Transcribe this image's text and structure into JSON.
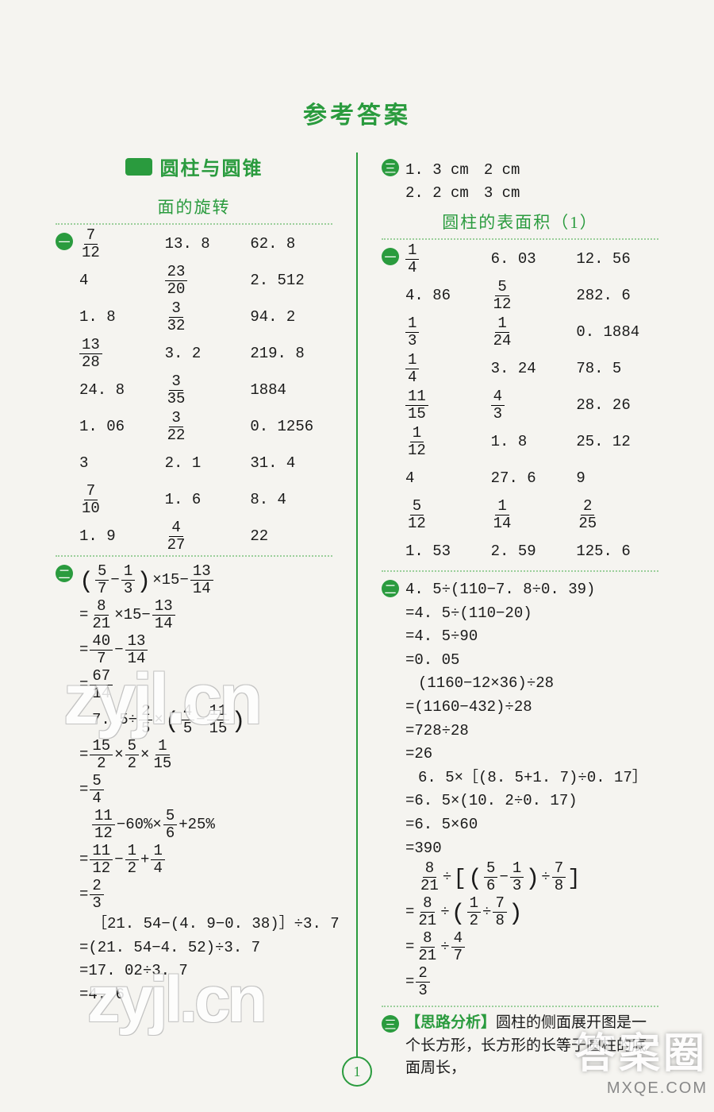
{
  "page_number": "1",
  "main_title": "参考答案",
  "chapter_title": "圆柱与圆锥",
  "left": {
    "sub_title": "面的旋转",
    "sec1_grid": [
      [
        {
          "t": "frac",
          "n": "7",
          "d": "12"
        },
        {
          "t": "txt",
          "v": "13. 8"
        },
        {
          "t": "txt",
          "v": "62. 8"
        }
      ],
      [
        {
          "t": "txt",
          "v": "4"
        },
        {
          "t": "frac",
          "n": "23",
          "d": "20"
        },
        {
          "t": "txt",
          "v": "2. 512"
        }
      ],
      [
        {
          "t": "txt",
          "v": "1. 8"
        },
        {
          "t": "frac",
          "n": "3",
          "d": "32"
        },
        {
          "t": "txt",
          "v": "94. 2"
        }
      ],
      [
        {
          "t": "frac",
          "n": "13",
          "d": "28"
        },
        {
          "t": "txt",
          "v": "3. 2"
        },
        {
          "t": "txt",
          "v": "219. 8"
        }
      ],
      [
        {
          "t": "txt",
          "v": "24. 8"
        },
        {
          "t": "frac",
          "n": "3",
          "d": "35"
        },
        {
          "t": "txt",
          "v": "1884"
        }
      ],
      [
        {
          "t": "txt",
          "v": "1. 06"
        },
        {
          "t": "frac",
          "n": "3",
          "d": "22"
        },
        {
          "t": "txt",
          "v": "0. 1256"
        }
      ],
      [
        {
          "t": "txt",
          "v": "3"
        },
        {
          "t": "txt",
          "v": "2. 1"
        },
        {
          "t": "txt",
          "v": "31. 4"
        }
      ],
      [
        {
          "t": "frac",
          "n": "7",
          "d": "10"
        },
        {
          "t": "txt",
          "v": "1. 6"
        },
        {
          "t": "txt",
          "v": "8. 4"
        }
      ],
      [
        {
          "t": "txt",
          "v": "1. 9"
        },
        {
          "t": "frac",
          "n": "4",
          "d": "27"
        },
        {
          "t": "txt",
          "v": "22"
        }
      ]
    ],
    "sec2": {
      "block1": [
        [
          {
            "t": "lparen",
            "v": "("
          },
          {
            "t": "frac",
            "n": "5",
            "d": "7"
          },
          {
            "t": "txt",
            "v": "−"
          },
          {
            "t": "frac",
            "n": "1",
            "d": "3"
          },
          {
            "t": "lparen",
            "v": ")"
          },
          {
            "t": "txt",
            "v": "×15−"
          },
          {
            "t": "frac",
            "n": "13",
            "d": "14"
          }
        ],
        [
          {
            "t": "txt",
            "v": "="
          },
          {
            "t": "frac",
            "n": "8",
            "d": "21"
          },
          {
            "t": "txt",
            "v": "×15−"
          },
          {
            "t": "frac",
            "n": "13",
            "d": "14"
          }
        ],
        [
          {
            "t": "txt",
            "v": "="
          },
          {
            "t": "frac",
            "n": "40",
            "d": "7"
          },
          {
            "t": "txt",
            "v": "−"
          },
          {
            "t": "frac",
            "n": "13",
            "d": "14"
          }
        ],
        [
          {
            "t": "txt",
            "v": "="
          },
          {
            "t": "frac",
            "n": "67",
            "d": "14"
          }
        ]
      ],
      "block2": [
        [
          {
            "t": "txt",
            "v": "7. 5÷"
          },
          {
            "t": "frac",
            "n": "2",
            "d": "5"
          },
          {
            "t": "txt",
            "v": "×"
          },
          {
            "t": "lparen",
            "v": "("
          },
          {
            "t": "frac",
            "n": "4",
            "d": "5"
          },
          {
            "t": "txt",
            "v": "−"
          },
          {
            "t": "frac",
            "n": "11",
            "d": "15"
          },
          {
            "t": "lparen",
            "v": ")"
          }
        ],
        [
          {
            "t": "txt",
            "v": "="
          },
          {
            "t": "frac",
            "n": "15",
            "d": "2"
          },
          {
            "t": "txt",
            "v": "×"
          },
          {
            "t": "frac",
            "n": "5",
            "d": "2"
          },
          {
            "t": "txt",
            "v": "×"
          },
          {
            "t": "frac",
            "n": "1",
            "d": "15"
          }
        ],
        [
          {
            "t": "txt",
            "v": "="
          },
          {
            "t": "frac",
            "n": "5",
            "d": "4"
          }
        ]
      ],
      "block3": [
        [
          {
            "t": "frac",
            "n": "11",
            "d": "12"
          },
          {
            "t": "txt",
            "v": "−60%×"
          },
          {
            "t": "frac",
            "n": "5",
            "d": "6"
          },
          {
            "t": "txt",
            "v": "+25%"
          }
        ],
        [
          {
            "t": "txt",
            "v": "="
          },
          {
            "t": "frac",
            "n": "11",
            "d": "12"
          },
          {
            "t": "txt",
            "v": "−"
          },
          {
            "t": "frac",
            "n": "1",
            "d": "2"
          },
          {
            "t": "txt",
            "v": "+"
          },
          {
            "t": "frac",
            "n": "1",
            "d": "4"
          }
        ],
        [
          {
            "t": "txt",
            "v": "="
          },
          {
            "t": "frac",
            "n": "2",
            "d": "3"
          }
        ]
      ],
      "block4": [
        [
          {
            "t": "txt",
            "v": "［21. 54−(4. 9−0. 38)］÷3. 7"
          }
        ],
        [
          {
            "t": "txt",
            "v": "=(21. 54−4. 52)÷3. 7"
          }
        ],
        [
          {
            "t": "txt",
            "v": "=17. 02÷3. 7"
          }
        ],
        [
          {
            "t": "txt",
            "v": "=4. 6"
          }
        ]
      ]
    }
  },
  "right": {
    "sec3": {
      "line1": "1. 3 cm　2 cm",
      "line2": "2. 2 cm　3 cm"
    },
    "sub_title": "圆柱的表面积（1）",
    "sec1_grid": [
      [
        {
          "t": "frac",
          "n": "1",
          "d": "4"
        },
        {
          "t": "txt",
          "v": "6. 03"
        },
        {
          "t": "txt",
          "v": "12. 56"
        }
      ],
      [
        {
          "t": "txt",
          "v": "4. 86"
        },
        {
          "t": "frac",
          "n": "5",
          "d": "12"
        },
        {
          "t": "txt",
          "v": "282. 6"
        }
      ],
      [
        {
          "t": "frac",
          "n": "1",
          "d": "3"
        },
        {
          "t": "frac",
          "n": "1",
          "d": "24"
        },
        {
          "t": "txt",
          "v": "0. 1884"
        }
      ],
      [
        {
          "t": "frac",
          "n": "1",
          "d": "4"
        },
        {
          "t": "txt",
          "v": "3. 24"
        },
        {
          "t": "txt",
          "v": "78. 5"
        }
      ],
      [
        {
          "t": "frac",
          "n": "11",
          "d": "15"
        },
        {
          "t": "frac",
          "n": "4",
          "d": "3"
        },
        {
          "t": "txt",
          "v": "28. 26"
        }
      ],
      [
        {
          "t": "frac",
          "n": "1",
          "d": "12"
        },
        {
          "t": "txt",
          "v": "1. 8"
        },
        {
          "t": "txt",
          "v": "25. 12"
        }
      ],
      [
        {
          "t": "txt",
          "v": "4"
        },
        {
          "t": "txt",
          "v": "27. 6"
        },
        {
          "t": "txt",
          "v": "9"
        }
      ],
      [
        {
          "t": "frac",
          "n": "5",
          "d": "12"
        },
        {
          "t": "frac",
          "n": "1",
          "d": "14"
        },
        {
          "t": "frac",
          "n": "2",
          "d": "25"
        }
      ],
      [
        {
          "t": "txt",
          "v": "1. 53"
        },
        {
          "t": "txt",
          "v": "2. 59"
        },
        {
          "t": "txt",
          "v": "125. 6"
        }
      ]
    ],
    "sec2": {
      "block1": [
        [
          {
            "t": "txt",
            "v": "4. 5÷(110−7. 8÷0. 39)"
          }
        ],
        [
          {
            "t": "txt",
            "v": "=4. 5÷(110−20)"
          }
        ],
        [
          {
            "t": "txt",
            "v": "=4. 5÷90"
          }
        ],
        [
          {
            "t": "txt",
            "v": "=0. 05"
          }
        ]
      ],
      "block2": [
        [
          {
            "t": "txt",
            "v": "(1160−12×36)÷28"
          }
        ],
        [
          {
            "t": "txt",
            "v": "=(1160−432)÷28"
          }
        ],
        [
          {
            "t": "txt",
            "v": "=728÷28"
          }
        ],
        [
          {
            "t": "txt",
            "v": "=26"
          }
        ]
      ],
      "block3": [
        [
          {
            "t": "txt",
            "v": "6. 5×［(8. 5+1. 7)÷0. 17］"
          }
        ],
        [
          {
            "t": "txt",
            "v": "=6. 5×(10. 2÷0. 17)"
          }
        ],
        [
          {
            "t": "txt",
            "v": "=6. 5×60"
          }
        ],
        [
          {
            "t": "txt",
            "v": "=390"
          }
        ]
      ],
      "block4": [
        [
          {
            "t": "frac",
            "n": "8",
            "d": "21"
          },
          {
            "t": "txt",
            "v": "÷"
          },
          {
            "t": "lbrack",
            "v": "["
          },
          {
            "t": "lparen",
            "v": "("
          },
          {
            "t": "frac",
            "n": "5",
            "d": "6"
          },
          {
            "t": "txt",
            "v": "−"
          },
          {
            "t": "frac",
            "n": "1",
            "d": "3"
          },
          {
            "t": "lparen",
            "v": ")"
          },
          {
            "t": "txt",
            "v": "÷"
          },
          {
            "t": "frac",
            "n": "7",
            "d": "8"
          },
          {
            "t": "lbrack",
            "v": "]"
          }
        ],
        [
          {
            "t": "txt",
            "v": "="
          },
          {
            "t": "frac",
            "n": "8",
            "d": "21"
          },
          {
            "t": "txt",
            "v": "÷"
          },
          {
            "t": "lparen",
            "v": "("
          },
          {
            "t": "frac",
            "n": "1",
            "d": "2"
          },
          {
            "t": "txt",
            "v": "÷"
          },
          {
            "t": "frac",
            "n": "7",
            "d": "8"
          },
          {
            "t": "lparen",
            "v": ")"
          }
        ],
        [
          {
            "t": "txt",
            "v": "="
          },
          {
            "t": "frac",
            "n": "8",
            "d": "21"
          },
          {
            "t": "txt",
            "v": "÷"
          },
          {
            "t": "frac",
            "n": "4",
            "d": "7"
          }
        ],
        [
          {
            "t": "txt",
            "v": "="
          },
          {
            "t": "frac",
            "n": "2",
            "d": "3"
          }
        ]
      ]
    },
    "sec3b": {
      "label": "【思路分析】",
      "text": "圆柱的侧面展开图是一个长方形，长方形的长等于圆柱的底面周长，"
    }
  },
  "watermark1": "zyjl.cn",
  "watermark2": "zyjl.cn",
  "corner_big": "答案圈",
  "corner_small": "MXQE.COM"
}
